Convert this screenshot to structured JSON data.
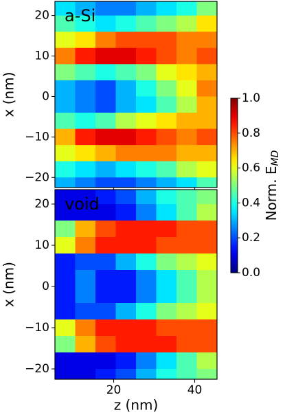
{
  "chart_data": [
    {
      "type": "heatmap",
      "label": "a-Si",
      "ylabel": "x (nm)",
      "x": [
        8,
        13,
        18,
        23,
        28,
        33,
        38,
        43
      ],
      "y": [
        22,
        18,
        14,
        10,
        6,
        2,
        -2,
        -6,
        -10,
        -14,
        -18,
        -22
      ],
      "values": [
        [
          0.35,
          0.3,
          0.25,
          0.25,
          0.3,
          0.35,
          0.4,
          0.5
        ],
        [
          0.45,
          0.4,
          0.35,
          0.4,
          0.45,
          0.5,
          0.55,
          0.65
        ],
        [
          0.6,
          0.65,
          0.75,
          0.8,
          0.8,
          0.8,
          0.75,
          0.75
        ],
        [
          0.75,
          0.85,
          0.9,
          0.9,
          0.85,
          0.8,
          0.75,
          0.8
        ],
        [
          0.5,
          0.45,
          0.4,
          0.45,
          0.5,
          0.6,
          0.65,
          0.7
        ],
        [
          0.3,
          0.25,
          0.2,
          0.3,
          0.4,
          0.5,
          0.6,
          0.75
        ],
        [
          0.3,
          0.25,
          0.2,
          0.3,
          0.35,
          0.45,
          0.55,
          0.7
        ],
        [
          0.45,
          0.4,
          0.45,
          0.55,
          0.6,
          0.65,
          0.7,
          0.7
        ],
        [
          0.7,
          0.85,
          0.9,
          0.9,
          0.85,
          0.8,
          0.75,
          0.8
        ],
        [
          0.6,
          0.65,
          0.7,
          0.75,
          0.75,
          0.75,
          0.7,
          0.7
        ],
        [
          0.4,
          0.35,
          0.3,
          0.35,
          0.4,
          0.45,
          0.55,
          0.6
        ],
        [
          0.3,
          0.25,
          0.2,
          0.2,
          0.25,
          0.3,
          0.35,
          0.45
        ]
      ],
      "xlim": [
        5.5,
        45.5
      ],
      "xticks": [
        20,
        40
      ],
      "ylim": [
        -22.5,
        23.5
      ],
      "yticks": [
        {
          "value": -20,
          "label": "−20"
        },
        {
          "value": -10,
          "label": "−10"
        },
        0,
        10,
        20
      ],
      "colormap": "jet",
      "colorbar": {
        "text": "Norm. E",
        "subscript": "MD",
        "lim": [
          0,
          1
        ],
        "ticks": [
          {
            "value": 0,
            "label": "0.0"
          },
          {
            "value": 0.2,
            "label": "0.2"
          },
          {
            "value": 0.4,
            "label": "0.4"
          },
          {
            "value": 0.6,
            "label": "0.6"
          },
          {
            "value": 0.8,
            "label": "0.8"
          },
          {
            "value": 1,
            "label": "1.0"
          }
        ]
      }
    },
    {
      "type": "heatmap",
      "label": "void",
      "ylabel": "x (nm)",
      "xlabel": "z (nm)",
      "x": [
        8,
        13,
        18,
        23,
        28,
        33,
        38,
        43
      ],
      "y": [
        22,
        18,
        14,
        10,
        6,
        2,
        -2,
        -6,
        -10,
        -14,
        -18,
        -22
      ],
      "values": [
        [
          0.1,
          0.1,
          0.15,
          0.2,
          0.3,
          0.4,
          0.45,
          0.5
        ],
        [
          0.1,
          0.1,
          0.1,
          0.15,
          0.25,
          0.35,
          0.45,
          0.55
        ],
        [
          0.5,
          0.7,
          0.8,
          0.85,
          0.85,
          0.85,
          0.8,
          0.8
        ],
        [
          0.6,
          0.75,
          0.85,
          0.85,
          0.85,
          0.8,
          0.8,
          0.8
        ],
        [
          0.15,
          0.2,
          0.2,
          0.3,
          0.4,
          0.5,
          0.55,
          0.6
        ],
        [
          0.15,
          0.25,
          0.15,
          0.15,
          0.25,
          0.35,
          0.45,
          0.55
        ],
        [
          0.15,
          0.25,
          0.15,
          0.15,
          0.25,
          0.35,
          0.45,
          0.55
        ],
        [
          0.15,
          0.2,
          0.2,
          0.3,
          0.4,
          0.5,
          0.55,
          0.6
        ],
        [
          0.6,
          0.75,
          0.85,
          0.85,
          0.85,
          0.8,
          0.8,
          0.8
        ],
        [
          0.5,
          0.7,
          0.8,
          0.85,
          0.85,
          0.85,
          0.8,
          0.8
        ],
        [
          0.1,
          0.1,
          0.1,
          0.15,
          0.25,
          0.35,
          0.45,
          0.55
        ],
        [
          0.1,
          0.1,
          0.15,
          0.2,
          0.3,
          0.4,
          0.45,
          0.5
        ]
      ],
      "xlim": [
        5.5,
        45.5
      ],
      "xticks": [
        20,
        40
      ],
      "ylim": [
        -22.5,
        23.5
      ],
      "yticks": [
        {
          "value": -20,
          "label": "−20"
        },
        {
          "value": -10,
          "label": "−10"
        },
        0,
        10,
        20
      ],
      "colormap": "jet"
    }
  ]
}
